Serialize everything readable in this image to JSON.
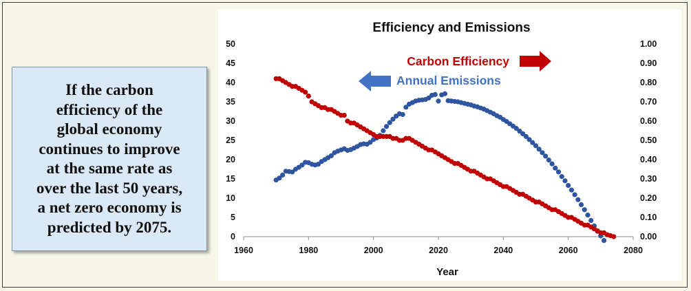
{
  "callout": {
    "text": "If the carbon\nefficiency of the\nglobal economy\ncontinues to improve\nat the same rate as\nover the last 50 years,\na net zero economy is\npredicted by 2075."
  },
  "chart_data": {
    "type": "scatter",
    "title": "Efficiency and Emissions",
    "xlabel": "Year",
    "ylabel": "",
    "y2label": "",
    "xlim": [
      1960,
      2080
    ],
    "ylim": [
      0,
      50
    ],
    "y2lim": [
      0,
      1.0
    ],
    "xticks": [
      "1960",
      "1980",
      "2000",
      "2020",
      "2040",
      "2060",
      "2080"
    ],
    "yticks": [
      "0",
      "5",
      "10",
      "15",
      "20",
      "25",
      "30",
      "35",
      "40",
      "45",
      "50"
    ],
    "y2ticks": [
      "0.00",
      "0.10",
      "0.20",
      "0.30",
      "0.40",
      "0.50",
      "0.60",
      "0.70",
      "0.80",
      "0.90",
      "1.00"
    ],
    "grid": false,
    "legend": [
      {
        "label": "Carbon Efficiency",
        "color": "#c00000",
        "axis": "right",
        "arrow": "right"
      },
      {
        "label": "Annual Emissions",
        "color": "#4472c4",
        "axis": "left",
        "arrow": "left"
      }
    ],
    "series": [
      {
        "name": "Annual Emissions",
        "axis": "left",
        "color": "#2f55a0",
        "points": [
          [
            1970,
            14.7
          ],
          [
            1971,
            15.2
          ],
          [
            1972,
            16.0
          ],
          [
            1973,
            17.0
          ],
          [
            1974,
            16.9
          ],
          [
            1975,
            16.8
          ],
          [
            1976,
            17.5
          ],
          [
            1977,
            18.0
          ],
          [
            1978,
            18.6
          ],
          [
            1979,
            19.3
          ],
          [
            1980,
            19.2
          ],
          [
            1981,
            18.8
          ],
          [
            1982,
            18.6
          ],
          [
            1983,
            18.8
          ],
          [
            1984,
            19.5
          ],
          [
            1985,
            20.0
          ],
          [
            1986,
            20.5
          ],
          [
            1987,
            21.0
          ],
          [
            1988,
            21.8
          ],
          [
            1989,
            22.2
          ],
          [
            1990,
            22.5
          ],
          [
            1991,
            22.8
          ],
          [
            1992,
            22.4
          ],
          [
            1993,
            22.6
          ],
          [
            1994,
            23.0
          ],
          [
            1995,
            23.4
          ],
          [
            1996,
            23.9
          ],
          [
            1997,
            24.1
          ],
          [
            1998,
            24.0
          ],
          [
            1999,
            24.5
          ],
          [
            2000,
            25.2
          ],
          [
            2001,
            25.6
          ],
          [
            2002,
            26.3
          ],
          [
            2003,
            27.5
          ],
          [
            2004,
            28.6
          ],
          [
            2005,
            29.6
          ],
          [
            2006,
            30.5
          ],
          [
            2007,
            31.3
          ],
          [
            2008,
            31.9
          ],
          [
            2009,
            31.7
          ],
          [
            2010,
            33.6
          ],
          [
            2011,
            34.4
          ],
          [
            2012,
            34.8
          ],
          [
            2013,
            35.2
          ],
          [
            2014,
            35.4
          ],
          [
            2015,
            35.5
          ],
          [
            2016,
            35.6
          ],
          [
            2017,
            36.0
          ],
          [
            2018,
            36.7
          ],
          [
            2019,
            36.9
          ],
          [
            2020,
            35.2
          ],
          [
            2021,
            36.8
          ],
          [
            2022,
            37.1
          ],
          [
            2023,
            35.3
          ],
          [
            2024,
            35.2
          ],
          [
            2025,
            35.1
          ],
          [
            2026,
            35.0
          ],
          [
            2027,
            34.8
          ],
          [
            2028,
            34.6
          ],
          [
            2029,
            34.4
          ],
          [
            2030,
            34.2
          ],
          [
            2031,
            33.9
          ],
          [
            2032,
            33.7
          ],
          [
            2033,
            33.4
          ],
          [
            2034,
            33.1
          ],
          [
            2035,
            32.7
          ],
          [
            2036,
            32.3
          ],
          [
            2037,
            31.9
          ],
          [
            2038,
            31.4
          ],
          [
            2039,
            31.0
          ],
          [
            2040,
            30.4
          ],
          [
            2041,
            29.9
          ],
          [
            2042,
            29.3
          ],
          [
            2043,
            28.7
          ],
          [
            2044,
            28.1
          ],
          [
            2045,
            27.4
          ],
          [
            2046,
            26.7
          ],
          [
            2047,
            26.0
          ],
          [
            2048,
            25.2
          ],
          [
            2049,
            24.4
          ],
          [
            2050,
            23.6
          ],
          [
            2051,
            22.7
          ],
          [
            2052,
            21.8
          ],
          [
            2053,
            20.9
          ],
          [
            2054,
            19.9
          ],
          [
            2055,
            18.9
          ],
          [
            2056,
            17.8
          ],
          [
            2057,
            16.8
          ],
          [
            2058,
            15.6
          ],
          [
            2059,
            14.5
          ],
          [
            2060,
            13.3
          ],
          [
            2061,
            12.1
          ],
          [
            2062,
            10.9
          ],
          [
            2063,
            9.6
          ],
          [
            2064,
            8.3
          ],
          [
            2065,
            7.0
          ],
          [
            2066,
            5.6
          ],
          [
            2067,
            4.2
          ],
          [
            2068,
            2.8
          ],
          [
            2069,
            1.4
          ],
          [
            2070,
            0.2
          ],
          [
            2071,
            -1.0
          ]
        ]
      },
      {
        "name": "Carbon Efficiency",
        "axis": "right",
        "color": "#c00000",
        "points": [
          [
            1970,
            0.82
          ],
          [
            1971,
            0.82
          ],
          [
            1972,
            0.81
          ],
          [
            1973,
            0.8
          ],
          [
            1974,
            0.79
          ],
          [
            1975,
            0.78
          ],
          [
            1976,
            0.78
          ],
          [
            1977,
            0.77
          ],
          [
            1978,
            0.76
          ],
          [
            1979,
            0.75
          ],
          [
            1980,
            0.73
          ],
          [
            1981,
            0.7
          ],
          [
            1982,
            0.69
          ],
          [
            1983,
            0.68
          ],
          [
            1984,
            0.67
          ],
          [
            1985,
            0.67
          ],
          [
            1986,
            0.66
          ],
          [
            1987,
            0.66
          ],
          [
            1988,
            0.65
          ],
          [
            1989,
            0.64
          ],
          [
            1990,
            0.63
          ],
          [
            1991,
            0.63
          ],
          [
            1992,
            0.6
          ],
          [
            1993,
            0.59
          ],
          [
            1994,
            0.59
          ],
          [
            1995,
            0.58
          ],
          [
            1996,
            0.57
          ],
          [
            1997,
            0.56
          ],
          [
            1998,
            0.55
          ],
          [
            1999,
            0.54
          ],
          [
            2000,
            0.53
          ],
          [
            2001,
            0.52
          ],
          [
            2002,
            0.52
          ],
          [
            2003,
            0.52
          ],
          [
            2004,
            0.52
          ],
          [
            2005,
            0.52
          ],
          [
            2006,
            0.51
          ],
          [
            2007,
            0.51
          ],
          [
            2008,
            0.5
          ],
          [
            2009,
            0.5
          ],
          [
            2010,
            0.51
          ],
          [
            2011,
            0.51
          ],
          [
            2012,
            0.5
          ],
          [
            2013,
            0.49
          ],
          [
            2014,
            0.48
          ],
          [
            2015,
            0.47
          ],
          [
            2016,
            0.46
          ],
          [
            2017,
            0.45
          ],
          [
            2018,
            0.45
          ],
          [
            2019,
            0.44
          ],
          [
            2020,
            0.43
          ],
          [
            2021,
            0.42
          ],
          [
            2022,
            0.41
          ],
          [
            2023,
            0.4
          ],
          [
            2024,
            0.39
          ],
          [
            2025,
            0.38
          ],
          [
            2026,
            0.38
          ],
          [
            2027,
            0.37
          ],
          [
            2028,
            0.36
          ],
          [
            2029,
            0.35
          ],
          [
            2030,
            0.34
          ],
          [
            2031,
            0.34
          ],
          [
            2032,
            0.33
          ],
          [
            2033,
            0.32
          ],
          [
            2034,
            0.31
          ],
          [
            2035,
            0.3
          ],
          [
            2036,
            0.3
          ],
          [
            2037,
            0.29
          ],
          [
            2038,
            0.28
          ],
          [
            2039,
            0.27
          ],
          [
            2040,
            0.26
          ],
          [
            2041,
            0.26
          ],
          [
            2042,
            0.25
          ],
          [
            2043,
            0.24
          ],
          [
            2044,
            0.23
          ],
          [
            2045,
            0.22
          ],
          [
            2046,
            0.22
          ],
          [
            2047,
            0.21
          ],
          [
            2048,
            0.2
          ],
          [
            2049,
            0.19
          ],
          [
            2050,
            0.18
          ],
          [
            2051,
            0.18
          ],
          [
            2052,
            0.17
          ],
          [
            2053,
            0.16
          ],
          [
            2054,
            0.15
          ],
          [
            2055,
            0.14
          ],
          [
            2056,
            0.14
          ],
          [
            2057,
            0.13
          ],
          [
            2058,
            0.12
          ],
          [
            2059,
            0.11
          ],
          [
            2060,
            0.1
          ],
          [
            2061,
            0.1
          ],
          [
            2062,
            0.09
          ],
          [
            2063,
            0.08
          ],
          [
            2064,
            0.07
          ],
          [
            2065,
            0.06
          ],
          [
            2066,
            0.06
          ],
          [
            2067,
            0.05
          ],
          [
            2068,
            0.04
          ],
          [
            2069,
            0.03
          ],
          [
            2070,
            0.02
          ],
          [
            2071,
            0.02
          ],
          [
            2072,
            0.01
          ],
          [
            2073,
            0.005
          ],
          [
            2074,
            0.0
          ]
        ]
      }
    ]
  }
}
